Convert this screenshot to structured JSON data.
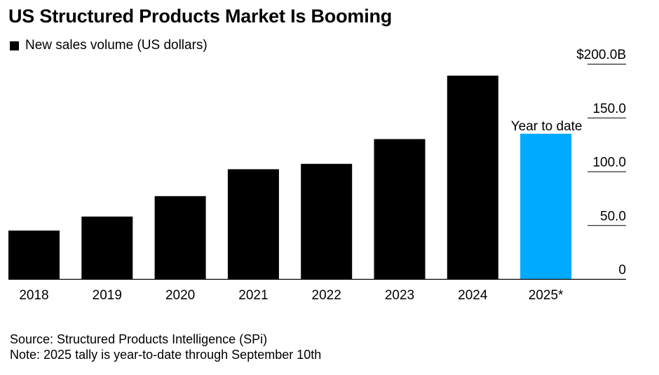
{
  "title": "US Structured Products Market Is Booming",
  "legend": {
    "label": "New sales volume (US dollars)",
    "color": "#000000"
  },
  "chart_data": {
    "type": "bar",
    "title": "US Structured Products Market Is Booming",
    "xlabel": "",
    "ylabel": "",
    "categories": [
      "2018",
      "2019",
      "2020",
      "2021",
      "2022",
      "2023",
      "2024",
      "2025*"
    ],
    "series": [
      {
        "name": "New sales volume (US dollars)",
        "values": [
          45,
          58,
          77,
          102,
          107,
          130,
          189,
          135
        ]
      }
    ],
    "colors": [
      "#000000",
      "#000000",
      "#000000",
      "#000000",
      "#000000",
      "#000000",
      "#000000",
      "#00aaff"
    ],
    "ylim": [
      0,
      200
    ],
    "yticks": [
      0,
      50,
      100,
      150,
      200
    ],
    "ytick_labels": [
      "0",
      "50.0",
      "100.0",
      "150.0",
      "$200.0B"
    ],
    "annotation": {
      "category": "2025*",
      "text": "Year to date"
    },
    "grid": false,
    "axis_position": "right"
  },
  "footer": {
    "source": "Source: Structured Products Intelligence (SPi)",
    "note": "Note: 2025 tally is year-to-date through September 10th"
  }
}
